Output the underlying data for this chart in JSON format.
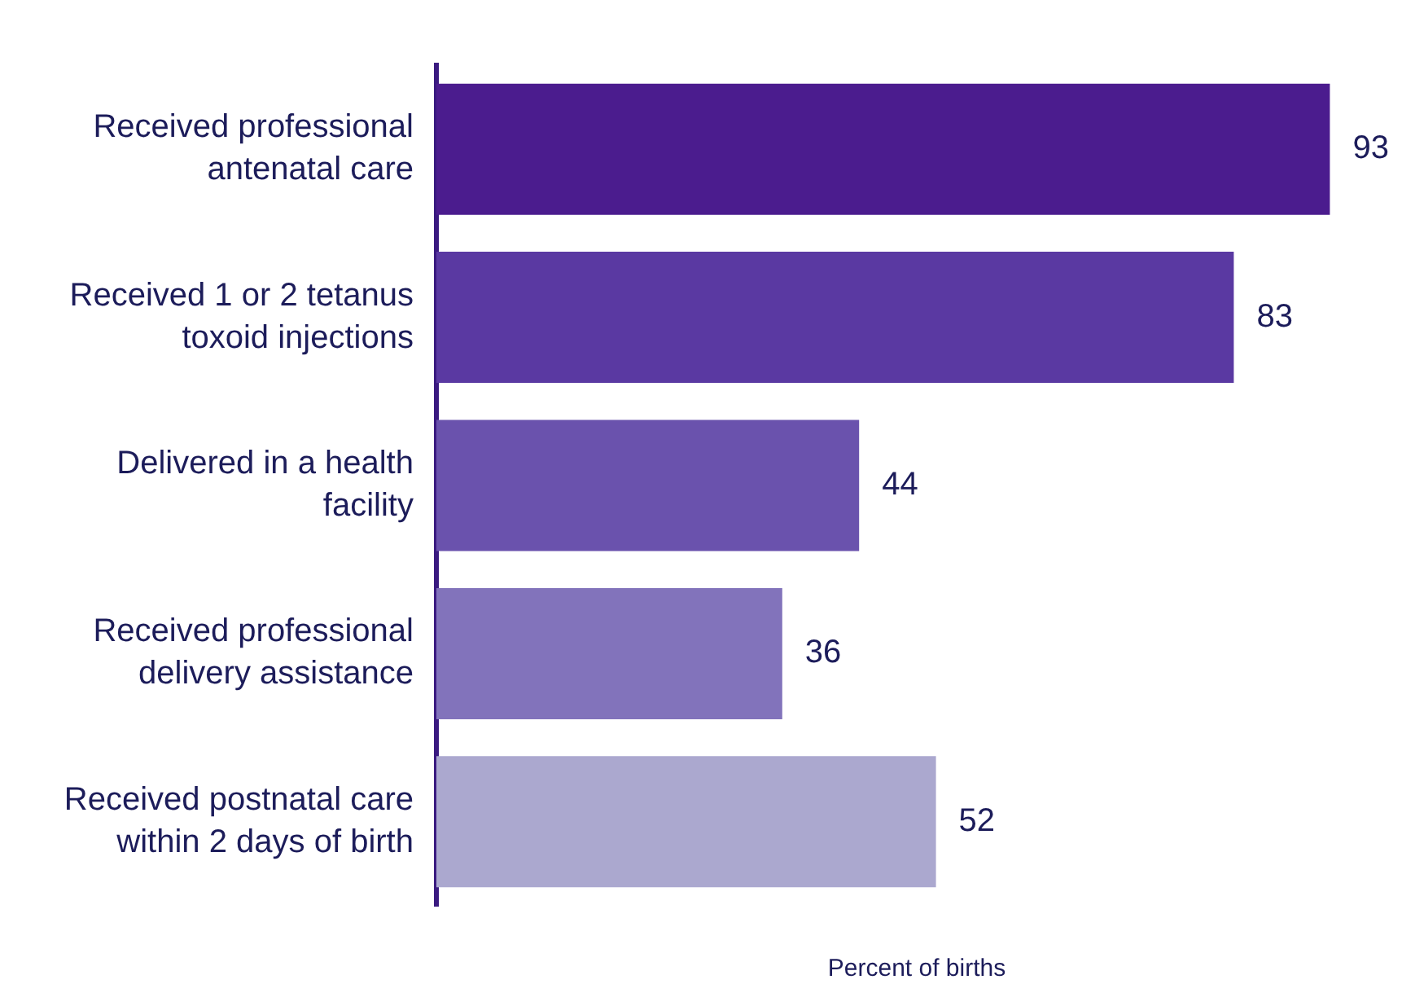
{
  "chart_data": {
    "type": "bar",
    "orientation": "horizontal",
    "xlabel": "Percent of births",
    "categories": [
      "Received professional antenatal care",
      "Received 1 or 2 tetanus toxoid injections",
      "Delivered in a health facility",
      "Received professional delivery assistance",
      "Received postnatal care within 2 days of birth"
    ],
    "values": [
      93,
      83,
      44,
      36,
      52
    ],
    "colors": [
      "#4b1c8e",
      "#5a39a2",
      "#6a52ad",
      "#8273bb",
      "#aba8cf"
    ],
    "data_labels": true,
    "grid": false,
    "legend": false
  }
}
